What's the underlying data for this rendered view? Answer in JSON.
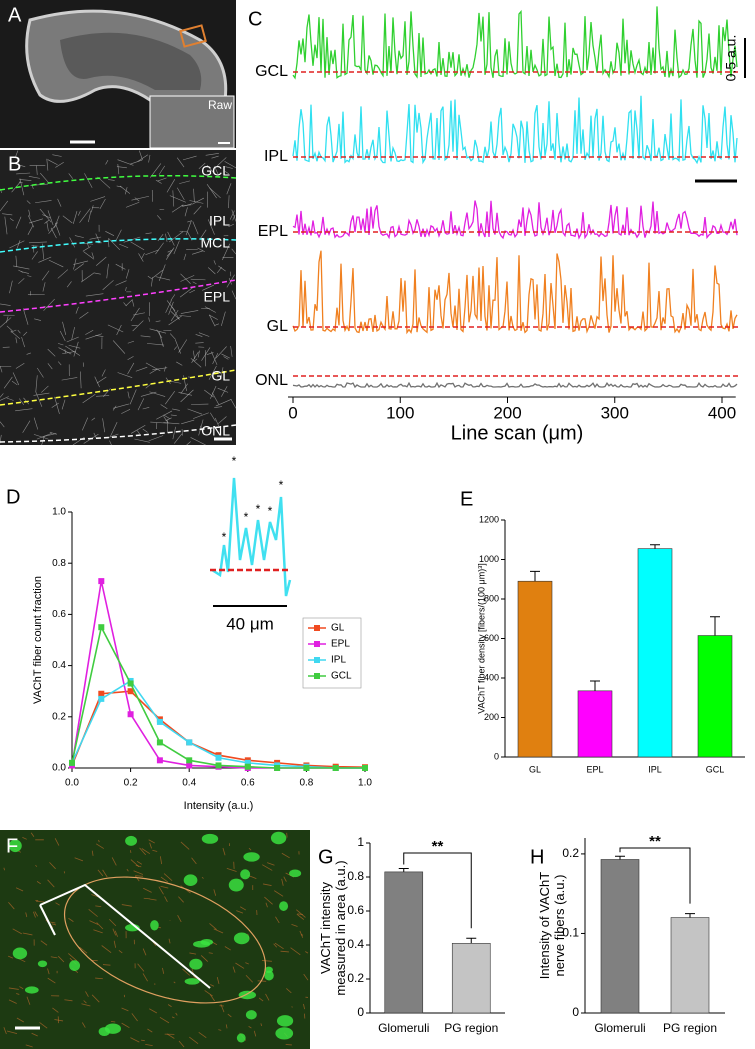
{
  "panel_letters": [
    "A",
    "B",
    "C",
    "D",
    "E",
    "F",
    "G",
    "H"
  ],
  "panel_a": {
    "inset_label": "Raw"
  },
  "panel_b": {
    "layer_labels": [
      "GCL",
      "IPL",
      "MCL",
      "EPL",
      "GL",
      "ONL"
    ]
  },
  "panel_c": {
    "trace_labels": [
      "GCL",
      "IPL",
      "EPL",
      "GL",
      "ONL"
    ],
    "scale_label": "0.5 a.u.",
    "x_axis": {
      "label": "Line scan (μm)",
      "xlim": [
        0,
        410
      ],
      "xticks": [
        0,
        100,
        200,
        300,
        400
      ]
    }
  },
  "chart_data": [
    {
      "type": "line",
      "xlabel": "Intensity (a.u.)",
      "ylabel": "VAChT fiber count fraction",
      "x": [
        0,
        0.1,
        0.2,
        0.3,
        0.4,
        0.5,
        0.6,
        0.7,
        0.8,
        0.9,
        1
      ],
      "series": [
        {
          "name": "GL",
          "color": "#f04a20",
          "values": [
            0.01,
            0.29,
            0.3,
            0.19,
            0.1,
            0.05,
            0.03,
            0.02,
            0.01,
            0.005,
            0.003
          ]
        },
        {
          "name": "EPL",
          "color": "#e020e0",
          "values": [
            0.01,
            0.73,
            0.21,
            0.03,
            0.01,
            0.005,
            0,
            0,
            0,
            0,
            0
          ]
        },
        {
          "name": "IPL",
          "color": "#40d8f0",
          "values": [
            0.02,
            0.27,
            0.34,
            0.18,
            0.1,
            0.04,
            0.02,
            0.01,
            0.005,
            0,
            0
          ]
        },
        {
          "name": "GCL",
          "color": "#40cc40",
          "values": [
            0.02,
            0.55,
            0.33,
            0.1,
            0.03,
            0.01,
            0.005,
            0,
            0,
            0,
            0
          ]
        }
      ],
      "xlim": [
        0,
        1
      ],
      "ylim": [
        0,
        1
      ],
      "xticks": [
        {
          "value": 0,
          "label": "0.0"
        },
        0.2,
        0.4,
        0.6,
        0.8,
        {
          "value": 1,
          "label": "1.0"
        }
      ],
      "yticks": [
        {
          "value": 0,
          "label": "0.0"
        },
        0.2,
        0.4,
        0.6,
        0.8,
        {
          "value": 1,
          "label": "1.0"
        }
      ],
      "legend": "right",
      "inset_scale_label": "40 μm"
    },
    {
      "type": "bar",
      "ylabel": [
        "VAChT fiber density [fibers/(100 μm)³]"
      ],
      "categories": [
        "GL",
        "EPL",
        "IPL",
        "GCL"
      ],
      "values": [
        890,
        335,
        1055,
        615
      ],
      "errors": [
        50,
        50,
        20,
        95
      ],
      "colors": [
        "#e08010",
        "#ff00ff",
        "#00ffff",
        "#00ff00"
      ],
      "ylim": [
        0,
        1200
      ],
      "yticks": [
        0,
        200,
        400,
        600,
        800,
        1000,
        1200
      ]
    },
    {
      "type": "bar",
      "ylabel": [
        "VAChT intensity",
        "measured in area (a.u.)"
      ],
      "categories": [
        "Glomeruli",
        "PG region"
      ],
      "values": [
        0.83,
        0.41
      ],
      "errors": [
        0.02,
        0.03
      ],
      "colors": [
        "#808080",
        "#c4c4c4"
      ],
      "ylim": [
        0,
        1
      ],
      "yticks": [
        0,
        0.2,
        0.4,
        0.6,
        0.8,
        1
      ],
      "significance": "**"
    },
    {
      "type": "bar",
      "ylabel": [
        "Intensity of VAChT",
        "nerve fibers (a.u.)"
      ],
      "categories": [
        "Glomeruli",
        "PG region"
      ],
      "values": [
        0.193,
        0.12
      ],
      "errors": [
        0.004,
        0.005
      ],
      "colors": [
        "#808080",
        "#c4c4c4"
      ],
      "ylim": [
        0,
        0.22
      ],
      "yticks": [
        0,
        0.1,
        0.2
      ],
      "significance": "**"
    }
  ]
}
